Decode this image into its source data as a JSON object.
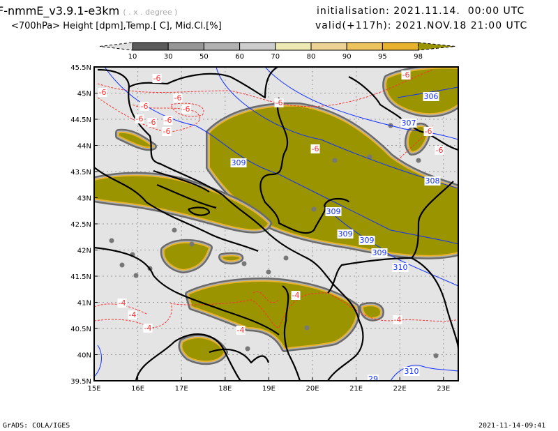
{
  "header": {
    "model": "F-nmmE_v3.9.1-e3km",
    "projection": "( . x . degree )",
    "fields": "<700hPa> Height [dpm],Temp.[ C], Mid.Cl.[%]",
    "initialisation": "initialisation: 2021.11.14.  00:00 UTC",
    "valid": "valid(+117h): 2021.NOV.18 21:00 UTC"
  },
  "colorbar": {
    "labels": [
      "10",
      "30",
      "50",
      "60",
      "70",
      "80",
      "90",
      "95",
      "98"
    ],
    "colors": [
      "#e0e0e0",
      "#5a5a5a",
      "#969696",
      "#b2b2b2",
      "#cdcdcd",
      "#ece9b4",
      "#ecd295",
      "#ecc35d",
      "#e8b22c",
      "#999400"
    ]
  },
  "axes": {
    "lat_labels": [
      "45.5N",
      "45N",
      "44.5N",
      "44N",
      "43.5N",
      "43N",
      "42.5N",
      "42N",
      "41.5N",
      "41N",
      "40.5N",
      "40N",
      "39.5N"
    ],
    "lon_labels": [
      "15E",
      "16E",
      "17E",
      "18E",
      "19E",
      "20E",
      "21E",
      "22E",
      "23E"
    ]
  },
  "contours": {
    "temperature_labels": [
      "-6",
      "-6",
      "-6",
      "-6",
      "-6",
      "-6",
      "-6",
      "-6",
      "-6",
      "-6",
      "-6",
      "-6",
      "-6",
      "-6",
      "-4",
      "-4",
      "-4",
      "-4",
      "-4",
      "-4"
    ],
    "height_labels": [
      "309",
      "306",
      "307",
      "308",
      "309",
      "309",
      "309",
      "309",
      "310",
      "310",
      "29"
    ],
    "temp_color": "#ff3030",
    "height_color": "#1030ff"
  },
  "footer": {
    "left": "GrADS: COLA/IGES",
    "right": "2021-11-14-09:41"
  }
}
